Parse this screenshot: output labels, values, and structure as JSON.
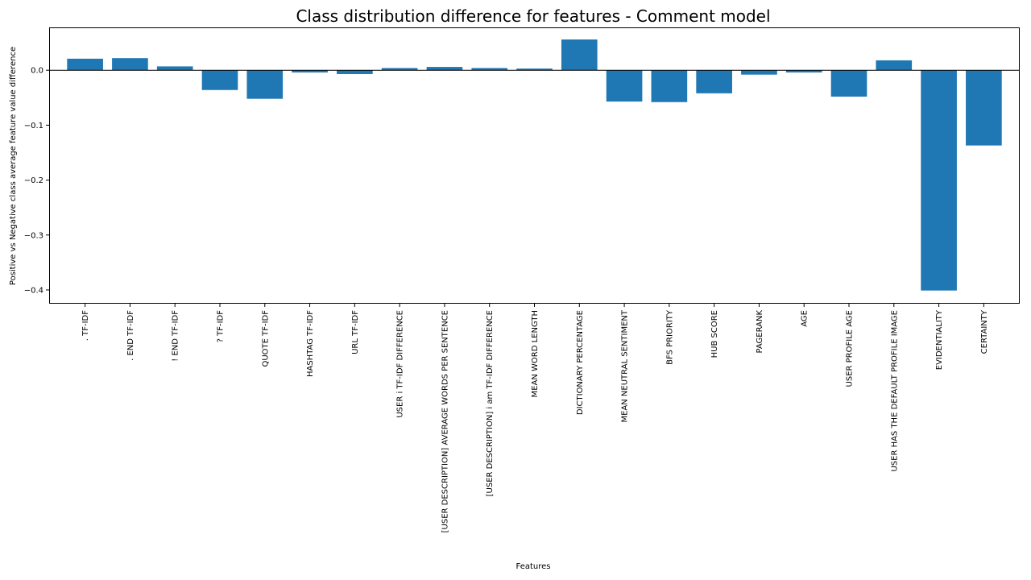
{
  "chart_data": {
    "type": "bar",
    "title": "Class distribution difference for features - Comment model",
    "xlabel": "Features",
    "ylabel": "Positive vs Negative class average feature value difference",
    "categories": [
      ". TF-IDF",
      ". END TF-IDF",
      "! END TF-IDF",
      "? TF-IDF",
      "QUOTE TF-IDF",
      "HASHTAG TF-IDF",
      "URL TF-IDF",
      "USER i TF-IDF DIFFERENCE",
      "[USER DESCRIPTION] AVERAGE WORDS PER SENTENCE",
      "[USER DESCRIPTION] i am TF-IDF DIFFERENCE",
      "MEAN WORD LENGTH",
      "DICTIONARY PERCENTAGE",
      "MEAN NEUTRAL SENTIMENT",
      "BFS PRIORITY",
      "HUB SCORE",
      "PAGERANK",
      "AGE",
      "USER PROFILE AGE",
      "USER HAS THE DEFAULT PROFILE IMAGE",
      "EVIDENTIALITY",
      "CERTAINTY"
    ],
    "values": [
      0.021,
      0.022,
      0.007,
      -0.036,
      -0.052,
      -0.004,
      -0.007,
      0.004,
      0.006,
      0.004,
      0.003,
      0.056,
      -0.057,
      -0.058,
      -0.042,
      -0.008,
      -0.004,
      -0.048,
      0.018,
      -0.401,
      -0.137
    ],
    "ylim": [
      -0.425,
      0.078
    ],
    "yticks": [
      0.0,
      -0.1,
      -0.2,
      -0.3,
      -0.4
    ],
    "ytick_labels": [
      "0.0",
      "−0.1",
      "−0.2",
      "−0.3",
      "−0.4"
    ],
    "zero_line": true,
    "grid": false,
    "colors": {
      "bar": "#1f77b4",
      "axes": "#000000",
      "zero_line": "#000000"
    }
  }
}
